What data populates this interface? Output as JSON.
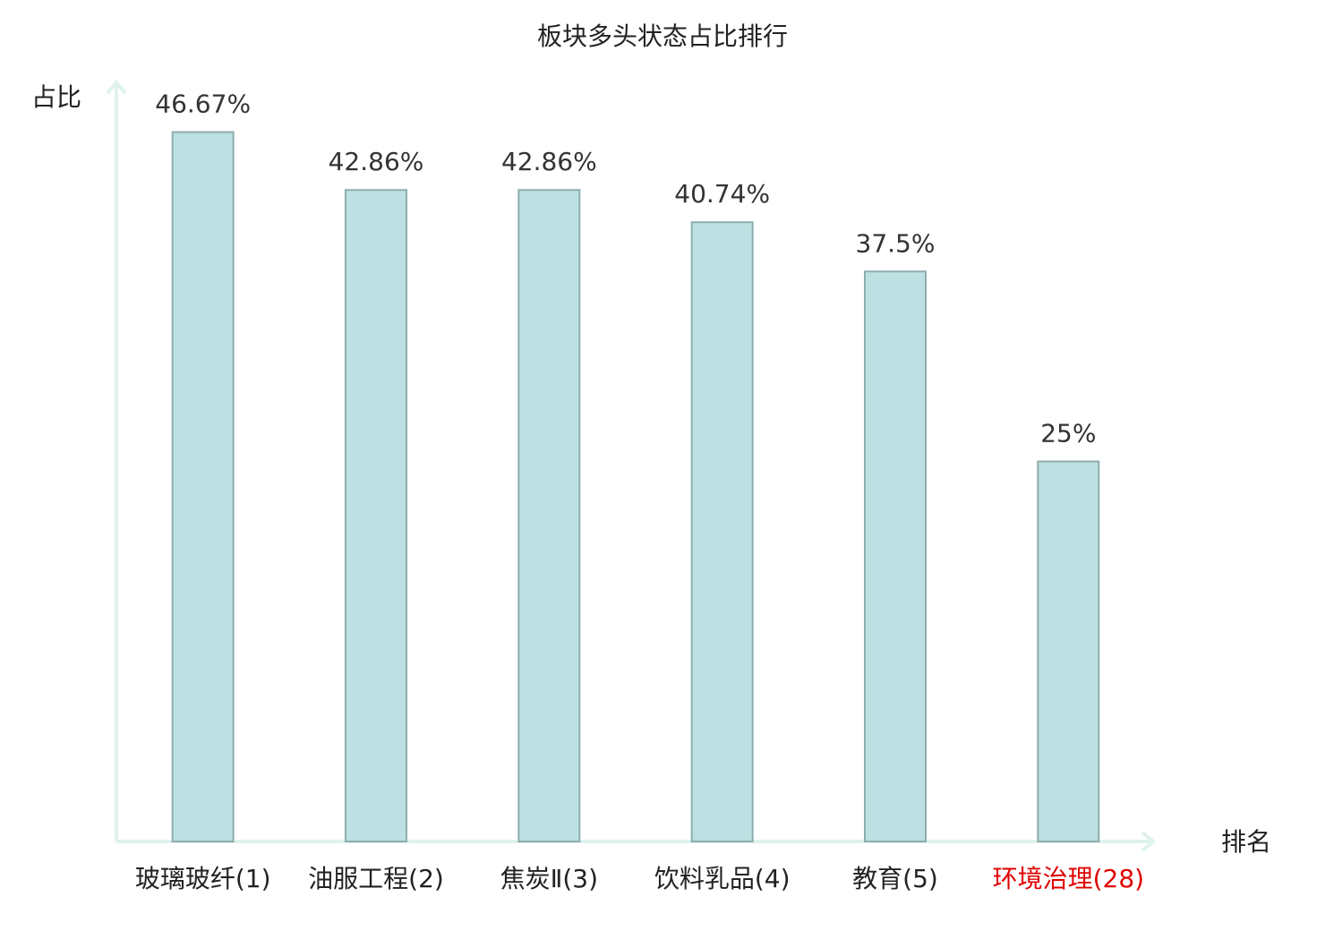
{
  "chart_data": {
    "type": "bar",
    "title": "板块多头状态占比排行",
    "y_label": "占比",
    "x_label": "排名",
    "categories": [
      "玻璃玻纤(1)",
      "油服工程(2)",
      "焦炭Ⅱ(3)",
      "饮料乳品(4)",
      "教育(5)",
      "环境治理(28)"
    ],
    "values": [
      46.67,
      42.86,
      42.86,
      40.74,
      37.5,
      25
    ],
    "value_labels": [
      "46.67%",
      "42.86%",
      "42.86%",
      "40.74%",
      "37.5%",
      "25%"
    ],
    "label_colors": [
      "#222222",
      "#222222",
      "#222222",
      "#222222",
      "#222222",
      "#e00000"
    ],
    "color": "#bde0e2",
    "ylim": [
      0,
      50
    ]
  }
}
